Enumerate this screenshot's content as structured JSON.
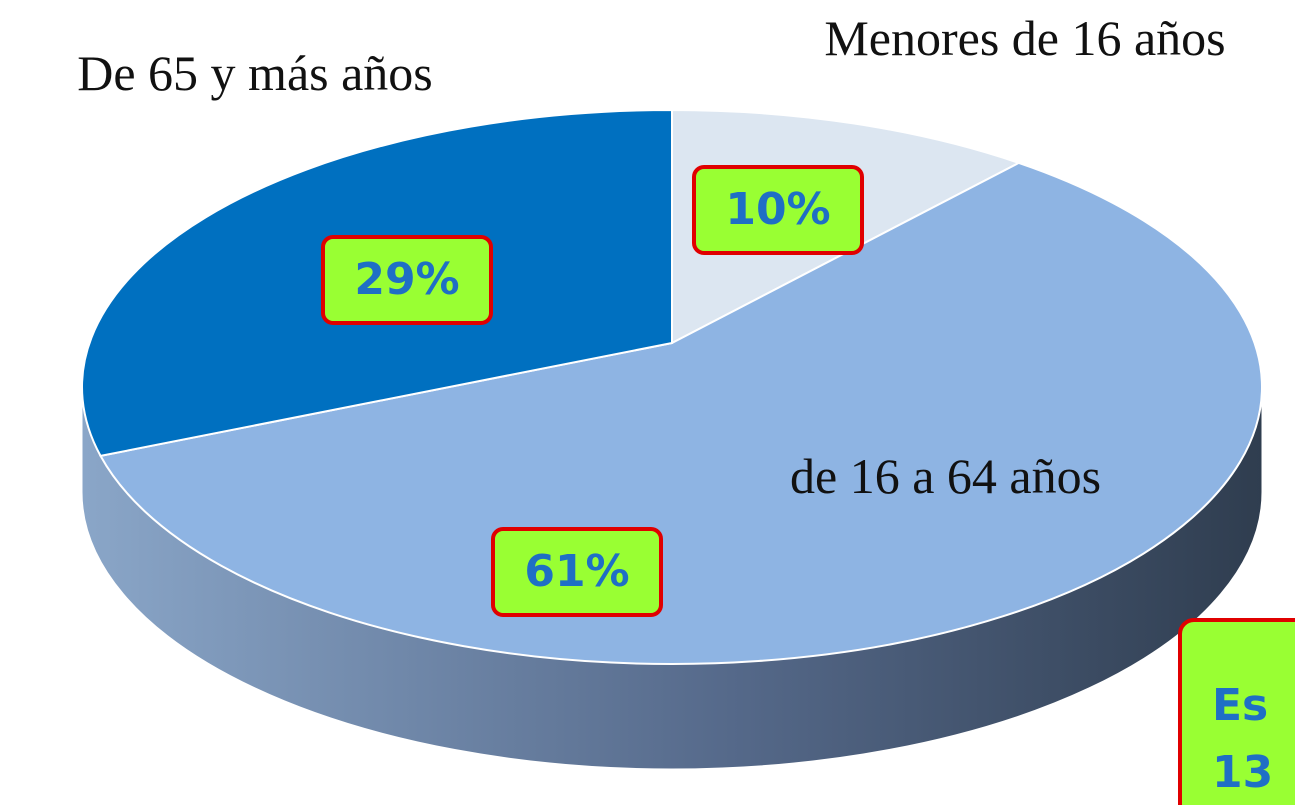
{
  "chart_data": {
    "type": "pie",
    "categories": [
      "Menores de 16 años",
      "de 16 a 64 años",
      "De 65 y más años"
    ],
    "values": [
      10,
      61,
      29
    ],
    "value_labels": [
      "10%",
      "61%",
      "29%"
    ],
    "colors": [
      "#dce6f1",
      "#8eb4e3",
      "#0070c0"
    ],
    "annotation": [
      "Es",
      "13"
    ]
  }
}
